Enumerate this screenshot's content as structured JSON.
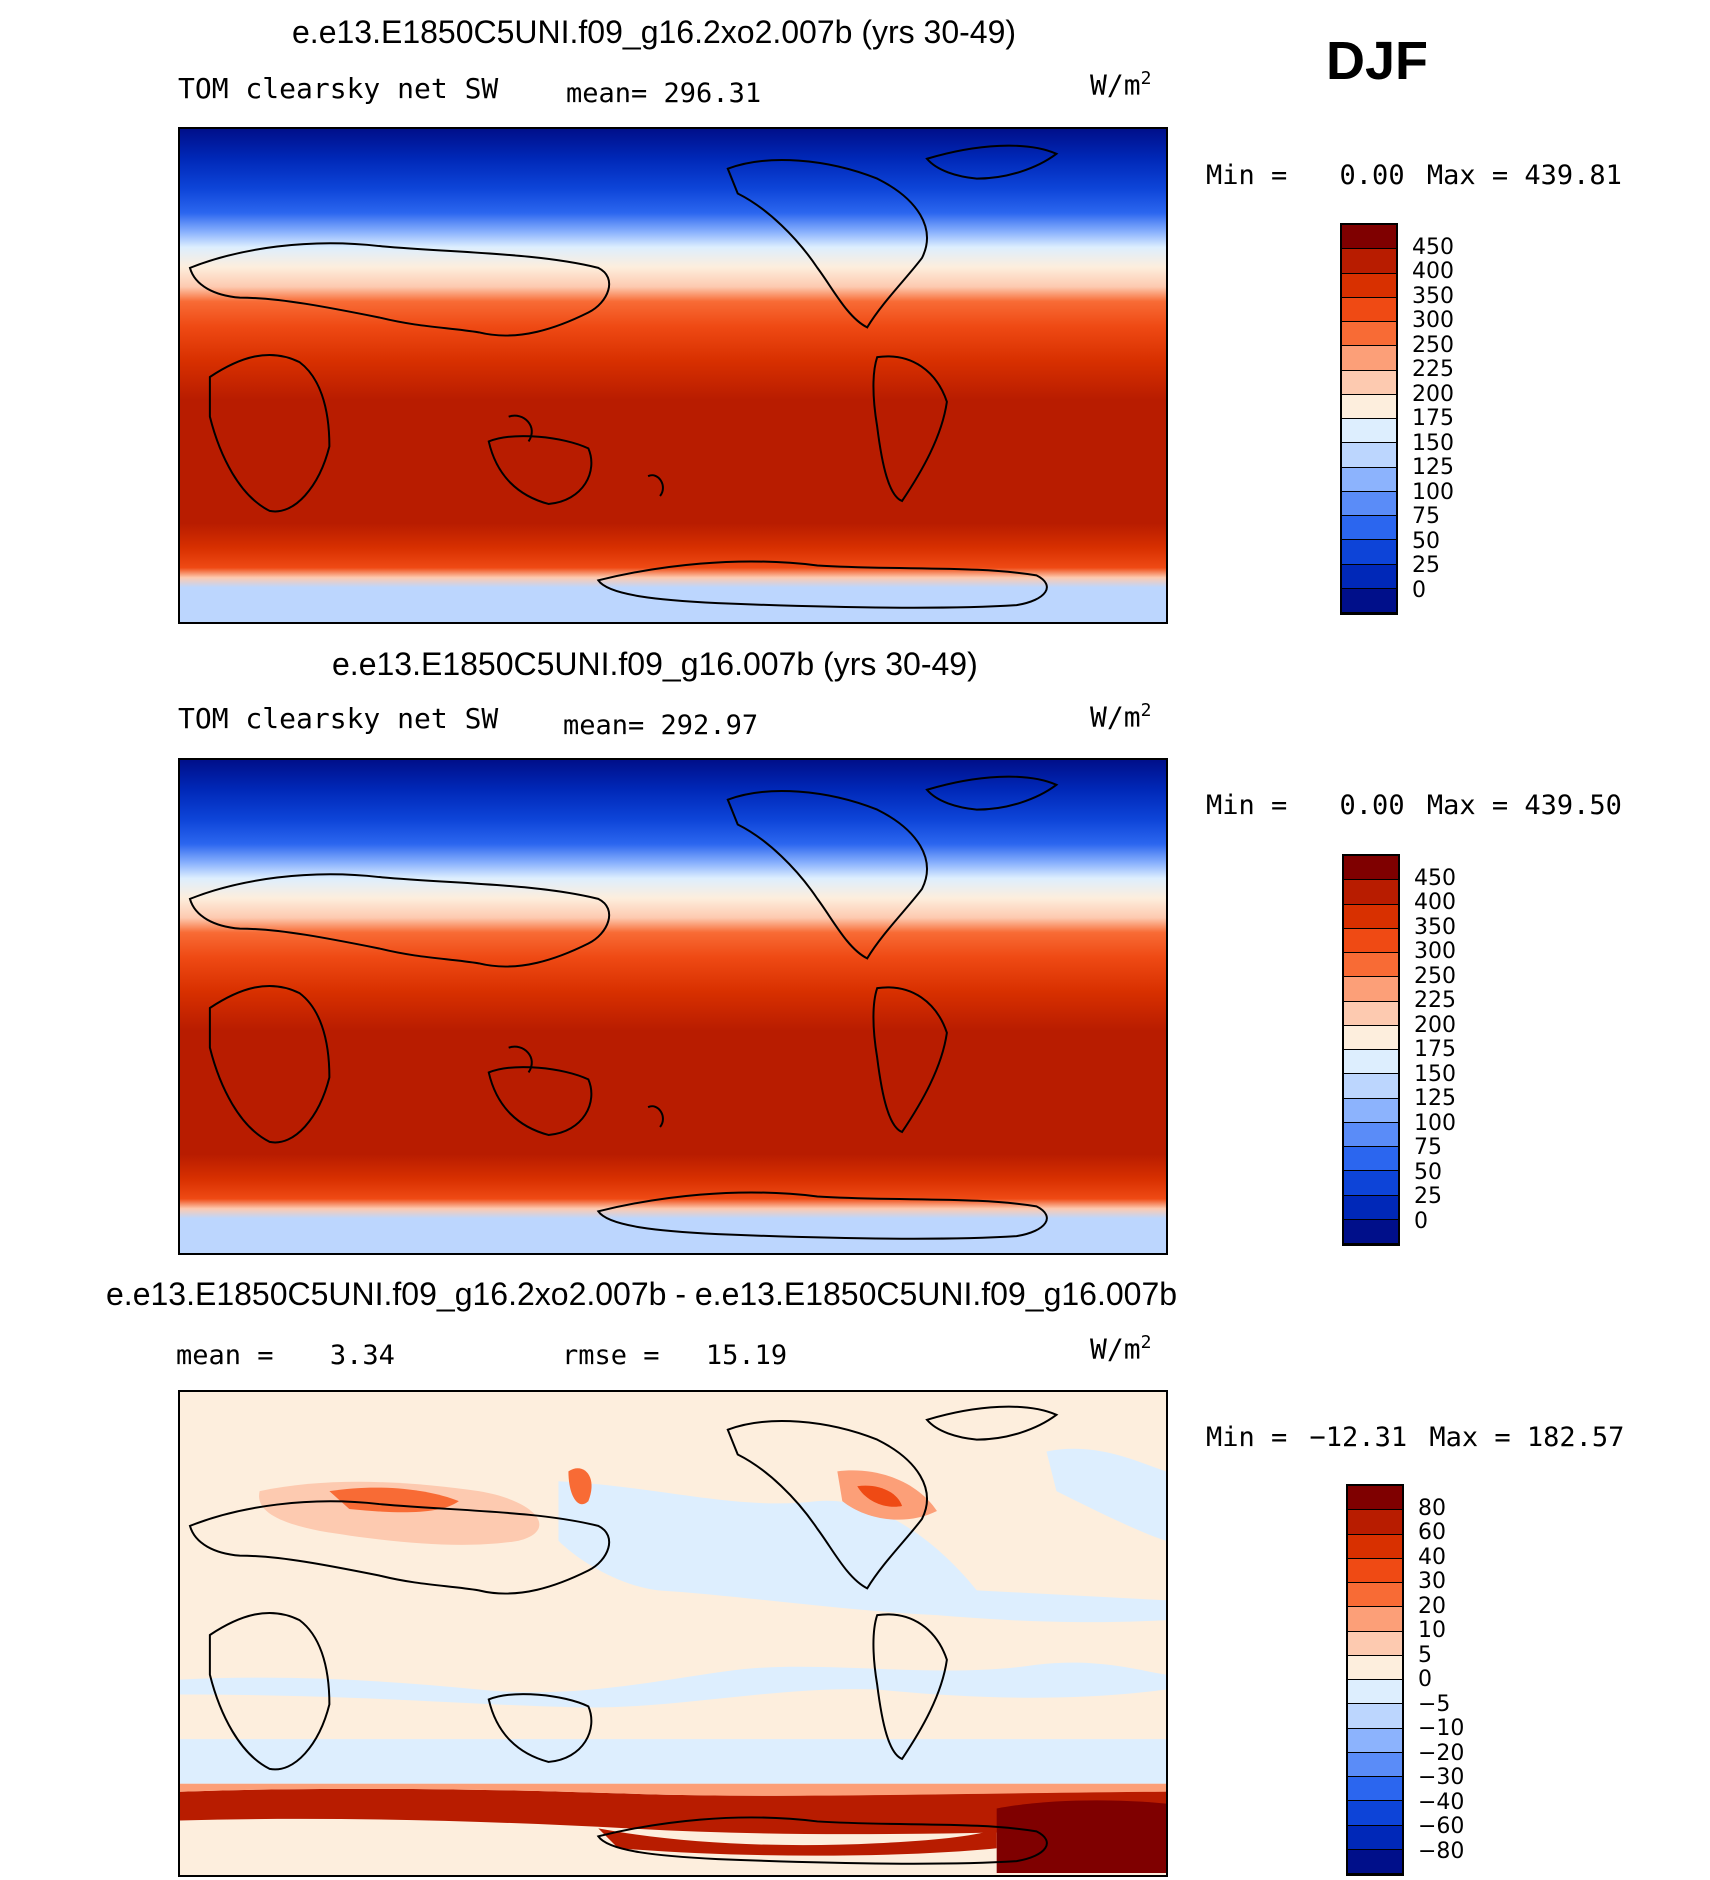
{
  "season": "DJF",
  "panels": [
    {
      "title": "e.e13.E1850C5UNI.f09_g16.2xo2.007b (yrs 30-49)",
      "left_label": "TOM clearsky net SW",
      "mean_label": "mean=",
      "mean_value": "296.31",
      "units": "W/m",
      "units_sup": "2",
      "min_label": "Min =",
      "min_value": "0.00",
      "max_label": "Max =",
      "max_value": "439.81",
      "colorbar": {
        "levels": [
          "450",
          "400",
          "350",
          "300",
          "250",
          "225",
          "200",
          "175",
          "150",
          "125",
          "100",
          "75",
          "50",
          "25",
          "0"
        ],
        "colors": [
          "#7f0000",
          "#b81c00",
          "#d83000",
          "#ef4a14",
          "#f86b35",
          "#fc9f78",
          "#fdcab0",
          "#fdeedd",
          "#ddeefe",
          "#bcd6fe",
          "#8cb3fd",
          "#5a8cf8",
          "#2b66ef",
          "#0d44d8",
          "#0028b8",
          "#000f8a"
        ]
      }
    },
    {
      "title": "e.e13.E1850C5UNI.f09_g16.007b (yrs 30-49)",
      "left_label": "TOM clearsky net SW",
      "mean_label": "mean=",
      "mean_value": "292.97",
      "units": "W/m",
      "units_sup": "2",
      "min_label": "Min =",
      "min_value": "0.00",
      "max_label": "Max =",
      "max_value": "439.50",
      "colorbar": {
        "levels": [
          "450",
          "400",
          "350",
          "300",
          "250",
          "225",
          "200",
          "175",
          "150",
          "125",
          "100",
          "75",
          "50",
          "25",
          "0"
        ],
        "colors": [
          "#7f0000",
          "#b81c00",
          "#d83000",
          "#ef4a14",
          "#f86b35",
          "#fc9f78",
          "#fdcab0",
          "#fdeedd",
          "#ddeefe",
          "#bcd6fe",
          "#8cb3fd",
          "#5a8cf8",
          "#2b66ef",
          "#0d44d8",
          "#0028b8",
          "#000f8a"
        ]
      }
    },
    {
      "title": "e.e13.E1850C5UNI.f09_g16.2xo2.007b - e.e13.E1850C5UNI.f09_g16.007b",
      "mean_label": "mean =",
      "mean_value": "3.34",
      "rmse_label": "rmse =",
      "rmse_value": "15.19",
      "units": "W/m",
      "units_sup": "2",
      "min_label": "Min =",
      "min_value": "−12.31",
      "max_label": "Max =",
      "max_value": "182.57",
      "colorbar": {
        "levels": [
          "80",
          "60",
          "40",
          "30",
          "20",
          "10",
          "5",
          "0",
          "−5",
          "−10",
          "−20",
          "−30",
          "−40",
          "−60",
          "−80"
        ],
        "colors": [
          "#7f0000",
          "#b81c00",
          "#d83000",
          "#ef4a14",
          "#f86b35",
          "#fc9f78",
          "#fdcab0",
          "#fdeedd",
          "#ddeefe",
          "#bcd6fe",
          "#8cb3fd",
          "#5a8cf8",
          "#2b66ef",
          "#0d44d8",
          "#0028b8",
          "#000f8a"
        ]
      }
    }
  ]
}
